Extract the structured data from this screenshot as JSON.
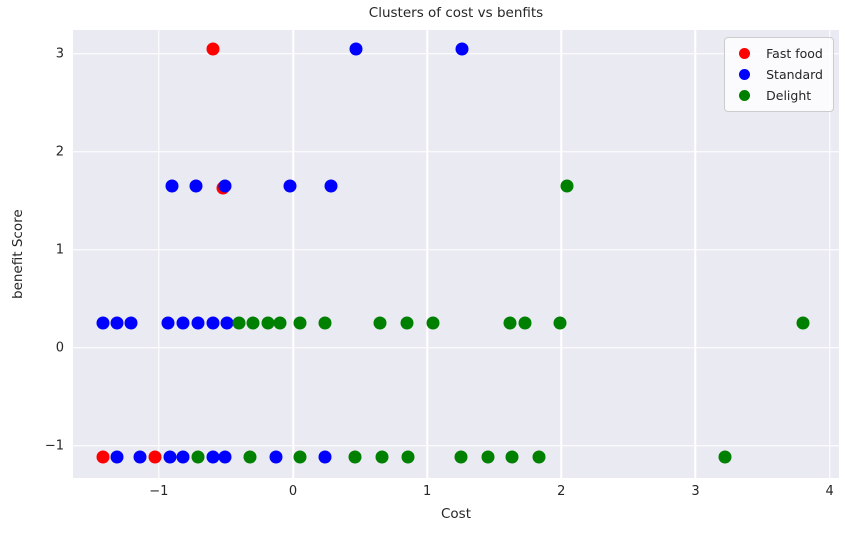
{
  "chart_data": {
    "type": "scatter",
    "title": "Clusters of cost vs benfits",
    "xlabel": "Cost",
    "ylabel": "benefit Score",
    "xlim": [
      -1.64,
      4.07
    ],
    "ylim": [
      -1.33,
      3.24
    ],
    "xticks": [
      -1,
      0,
      1,
      2,
      3,
      4
    ],
    "yticks": [
      -1,
      0,
      1,
      2,
      3
    ],
    "grid": true,
    "legend_position": "upper right",
    "colors": {
      "plot_background": "#eaeaf2",
      "grid": "#ffffff",
      "text": "#262626",
      "legend_border": "#cccccc"
    },
    "series": [
      {
        "name": "Fast food",
        "color": "#ff0000",
        "points": [
          [
            -0.6,
            3.05
          ],
          [
            -0.52,
            1.63
          ],
          [
            -1.42,
            -1.12
          ],
          [
            -1.03,
            -1.12
          ]
        ]
      },
      {
        "name": "Standard",
        "color": "#0000ff",
        "points": [
          [
            0.47,
            3.05
          ],
          [
            1.26,
            3.05
          ],
          [
            -0.9,
            1.65
          ],
          [
            -0.72,
            1.65
          ],
          [
            -0.51,
            1.65
          ],
          [
            -0.02,
            1.65
          ],
          [
            0.28,
            1.65
          ],
          [
            -1.42,
            0.25
          ],
          [
            -1.31,
            0.25
          ],
          [
            -1.21,
            0.25
          ],
          [
            -0.93,
            0.25
          ],
          [
            -0.82,
            0.25
          ],
          [
            -0.71,
            0.25
          ],
          [
            -0.6,
            0.25
          ],
          [
            -0.49,
            0.25
          ],
          [
            -1.31,
            -1.12
          ],
          [
            -1.14,
            -1.12
          ],
          [
            -0.92,
            -1.12
          ],
          [
            -0.82,
            -1.12
          ],
          [
            -0.6,
            -1.12
          ],
          [
            -0.51,
            -1.12
          ],
          [
            -0.13,
            -1.12
          ],
          [
            0.24,
            -1.12
          ]
        ]
      },
      {
        "name": "Delight",
        "color": "#008000",
        "points": [
          [
            2.04,
            1.65
          ],
          [
            -0.4,
            0.25
          ],
          [
            -0.3,
            0.25
          ],
          [
            -0.19,
            0.25
          ],
          [
            -0.1,
            0.25
          ],
          [
            0.05,
            0.25
          ],
          [
            0.24,
            0.25
          ],
          [
            0.65,
            0.25
          ],
          [
            0.85,
            0.25
          ],
          [
            1.04,
            0.25
          ],
          [
            1.62,
            0.25
          ],
          [
            1.73,
            0.25
          ],
          [
            1.99,
            0.25
          ],
          [
            3.8,
            0.25
          ],
          [
            -0.71,
            -1.12
          ],
          [
            -0.32,
            -1.12
          ],
          [
            0.05,
            -1.12
          ],
          [
            0.46,
            -1.12
          ],
          [
            0.66,
            -1.12
          ],
          [
            0.86,
            -1.12
          ],
          [
            1.25,
            -1.12
          ],
          [
            1.45,
            -1.12
          ],
          [
            1.63,
            -1.12
          ],
          [
            1.83,
            -1.12
          ],
          [
            3.22,
            -1.12
          ]
        ]
      }
    ]
  }
}
